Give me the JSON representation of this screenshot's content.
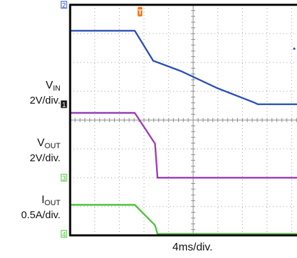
{
  "chart_data": {
    "type": "line",
    "title": "",
    "xlabel": "4ms/div.",
    "x_divisions": 10,
    "y_divisions": 8,
    "x_range_ms": [
      0,
      40
    ],
    "grid": "dotted",
    "trigger_marker": "T",
    "channels": [
      {
        "marker": "2",
        "name": "",
        "color": "#2a4fb5",
        "ground_div": 8.0,
        "x_ms": [
          0,
          10.5,
          13.5,
          18,
          24,
          30,
          30.5,
          40
        ],
        "y_div": [
          7.1,
          7.1,
          6.06,
          5.7,
          5.1,
          4.6,
          4.55,
          4.55
        ],
        "note": ""
      },
      {
        "marker": "1",
        "name": "V",
        "sub": "IN",
        "scale": "2V/div.",
        "color": "#9b3bb6",
        "ground_div": 4.55,
        "x_ms": [
          0,
          10.5,
          13.8,
          14.2,
          40
        ],
        "y_div": [
          4.25,
          4.25,
          3.18,
          2.0,
          2.0
        ]
      },
      {
        "marker": "3",
        "name": "V",
        "sub": "OUT",
        "scale": "2V/div.",
        "color": "#4cc23a",
        "ground_div": 2.0,
        "x_ms": [
          0,
          10.5,
          13.8,
          14.2,
          40
        ],
        "y_div": [
          1.06,
          1.06,
          0.35,
          0.05,
          0.05
        ]
      },
      {
        "marker": "4",
        "name": "I",
        "sub": "OUT",
        "scale": "0.5A/div.",
        "color": "#4cc23a",
        "ground_div": 0.05
      }
    ]
  }
}
